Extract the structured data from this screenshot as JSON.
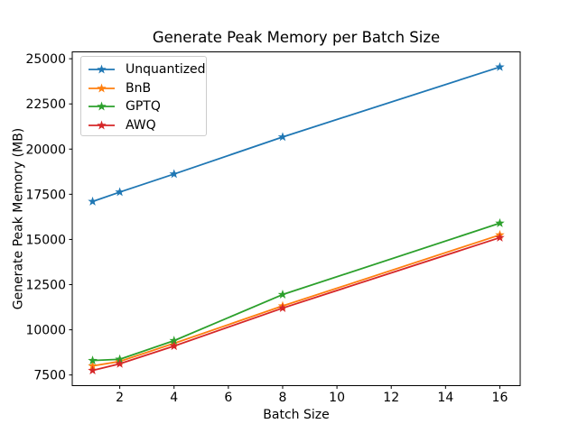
{
  "chart_data": {
    "type": "line",
    "title": "Generate Peak Memory per Batch Size",
    "xlabel": "Batch Size",
    "ylabel": "Generate Peak Memory (MB)",
    "x": [
      1,
      2,
      4,
      8,
      16
    ],
    "series": [
      {
        "name": "Unquantized",
        "color": "#1f77b4",
        "values": [
          17100,
          17620,
          18620,
          20670,
          24540
        ]
      },
      {
        "name": "BnB",
        "color": "#ff7f0e",
        "values": [
          8000,
          8250,
          9250,
          11320,
          15250
        ]
      },
      {
        "name": "GPTQ",
        "color": "#2ca02c",
        "values": [
          8300,
          8370,
          9400,
          11950,
          15900
        ]
      },
      {
        "name": "AWQ",
        "color": "#d62728",
        "values": [
          7750,
          8120,
          9100,
          11200,
          15100
        ]
      }
    ],
    "marker": "star",
    "line_width": 1.8,
    "xlim": [
      0.25,
      16.75
    ],
    "ylim": [
      6910,
      25380
    ],
    "xticks": [
      2,
      4,
      6,
      8,
      10,
      12,
      14,
      16
    ],
    "yticks": [
      7500,
      10000,
      12500,
      15000,
      17500,
      20000,
      22500,
      25000
    ],
    "grid": false,
    "legend_position": "upper left",
    "axis_color": "#000000",
    "background": "#ffffff"
  }
}
